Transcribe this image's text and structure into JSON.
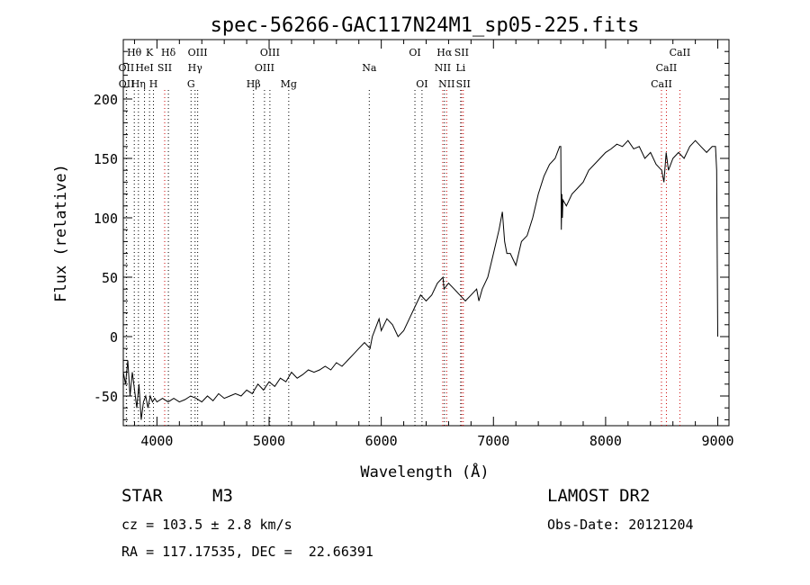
{
  "chart_data": {
    "type": "line",
    "title": "spec-56266-GAC117N24M1_sp05-225.fits",
    "xlabel": "Wavelength (Å)",
    "ylabel": "Flux (relative)",
    "xlim": [
      3700,
      9100
    ],
    "ylim": [
      -75,
      250
    ],
    "xticks": [
      4000,
      5000,
      6000,
      7000,
      8000,
      9000
    ],
    "yticks": [
      -50,
      0,
      50,
      100,
      150,
      200
    ],
    "grid": false,
    "series": [
      {
        "color": "#000000",
        "x": [
          3700,
          3720,
          3740,
          3760,
          3780,
          3800,
          3820,
          3840,
          3860,
          3880,
          3900,
          3920,
          3940,
          3960,
          3980,
          4000,
          4050,
          4100,
          4150,
          4200,
          4250,
          4300,
          4350,
          4400,
          4450,
          4500,
          4550,
          4600,
          4650,
          4700,
          4750,
          4800,
          4850,
          4900,
          4950,
          5000,
          5050,
          5100,
          5150,
          5200,
          5250,
          5300,
          5350,
          5400,
          5450,
          5500,
          5550,
          5600,
          5650,
          5700,
          5750,
          5800,
          5850,
          5900,
          5920,
          5940,
          5960,
          5980,
          6000,
          6050,
          6100,
          6150,
          6200,
          6250,
          6300,
          6350,
          6400,
          6450,
          6500,
          6550,
          6560,
          6600,
          6650,
          6700,
          6750,
          6800,
          6850,
          6870,
          6900,
          6950,
          7000,
          7050,
          7080,
          7100,
          7120,
          7150,
          7200,
          7250,
          7300,
          7350,
          7400,
          7450,
          7500,
          7550,
          7590,
          7600,
          7605,
          7610,
          7615,
          7620,
          7650,
          7700,
          7750,
          7800,
          7850,
          7900,
          7950,
          8000,
          8050,
          8100,
          8150,
          8200,
          8250,
          8300,
          8350,
          8400,
          8450,
          8500,
          8520,
          8540,
          8560,
          8600,
          8650,
          8700,
          8750,
          8800,
          8850,
          8900,
          8950,
          8980,
          8990,
          9000
        ],
        "y": [
          -30,
          -40,
          -20,
          -50,
          -30,
          -45,
          -60,
          -40,
          -70,
          -55,
          -50,
          -60,
          -50,
          -55,
          -52,
          -55,
          -52,
          -55,
          -52,
          -55,
          -53,
          -50,
          -52,
          -55,
          -50,
          -54,
          -48,
          -52,
          -50,
          -48,
          -50,
          -45,
          -48,
          -40,
          -45,
          -38,
          -42,
          -35,
          -38,
          -30,
          -35,
          -32,
          -28,
          -30,
          -28,
          -25,
          -28,
          -22,
          -25,
          -20,
          -15,
          -10,
          -5,
          -10,
          0,
          5,
          10,
          15,
          5,
          15,
          10,
          0,
          5,
          15,
          25,
          35,
          30,
          35,
          45,
          50,
          40,
          45,
          40,
          35,
          30,
          35,
          40,
          30,
          40,
          50,
          70,
          90,
          105,
          80,
          70,
          70,
          60,
          80,
          85,
          100,
          120,
          135,
          145,
          150,
          160,
          160,
          90,
          120,
          100,
          115,
          110,
          120,
          125,
          130,
          140,
          145,
          150,
          155,
          158,
          162,
          160,
          165,
          158,
          160,
          150,
          155,
          145,
          140,
          130,
          155,
          140,
          150,
          155,
          150,
          160,
          165,
          160,
          155,
          160,
          160,
          140,
          0
        ]
      }
    ],
    "line_markers": [
      {
        "label": "Hθ",
        "x": 3798,
        "color": "#000000",
        "row": 0
      },
      {
        "label": "OII",
        "x": 3727,
        "color": "#000000",
        "row": 1
      },
      {
        "label": "OII",
        "x": 3729,
        "color": "#000000",
        "row": 2
      },
      {
        "label": "Hη",
        "x": 3835,
        "color": "#000000",
        "row": 2
      },
      {
        "label": "HeI",
        "x": 3889,
        "color": "#000000",
        "row": 1
      },
      {
        "label": "K",
        "x": 3934,
        "color": "#000000",
        "row": 0
      },
      {
        "label": "SII",
        "x": 4069,
        "color": "#cc0000",
        "row": 1
      },
      {
        "label": "H",
        "x": 3969,
        "color": "#000000",
        "row": 2
      },
      {
        "label": "Hδ",
        "x": 4102,
        "color": "#000000",
        "row": 0
      },
      {
        "label": "OIII",
        "x": 4363,
        "color": "#000000",
        "row": 0
      },
      {
        "label": "Hγ",
        "x": 4340,
        "color": "#000000",
        "row": 1
      },
      {
        "label": "G",
        "x": 4304,
        "color": "#000000",
        "row": 2
      },
      {
        "label": "Hβ",
        "x": 4861,
        "color": "#000000",
        "row": 2
      },
      {
        "label": "OIII",
        "x": 4959,
        "color": "#000000",
        "row": 1
      },
      {
        "label": "OIII",
        "x": 5007,
        "color": "#000000",
        "row": 0
      },
      {
        "label": "Mg",
        "x": 5175,
        "color": "#000000",
        "row": 2
      },
      {
        "label": "Na",
        "x": 5893,
        "color": "#000000",
        "row": 1
      },
      {
        "label": "OI",
        "x": 6300,
        "color": "#000000",
        "row": 0
      },
      {
        "label": "OI",
        "x": 6363,
        "color": "#000000",
        "row": 2
      },
      {
        "label": "Hα",
        "x": 6563,
        "color": "#000000",
        "row": 0
      },
      {
        "label": "NII",
        "x": 6548,
        "color": "#cc0000",
        "row": 1
      },
      {
        "label": "NII",
        "x": 6583,
        "color": "#cc0000",
        "row": 2
      },
      {
        "label": "SII",
        "x": 6716,
        "color": "#cc0000",
        "row": 0
      },
      {
        "label": "Li",
        "x": 6708,
        "color": "#000000",
        "row": 1
      },
      {
        "label": "SII",
        "x": 6731,
        "color": "#cc0000",
        "row": 2
      },
      {
        "label": "CaII",
        "x": 8662,
        "color": "#cc0000",
        "row": 0
      },
      {
        "label": "CaII",
        "x": 8542,
        "color": "#cc0000",
        "row": 1
      },
      {
        "label": "CaII",
        "x": 8498,
        "color": "#cc0000",
        "row": 2
      }
    ]
  },
  "info": {
    "object_type": "STAR",
    "subclass": "M3",
    "survey": "LAMOST DR2",
    "cz": "cz = 103.5 ± 2.8 km/s",
    "obs_date": "Obs-Date: 20121204",
    "coords": "RA = 117.17535, DEC =  22.66391"
  }
}
